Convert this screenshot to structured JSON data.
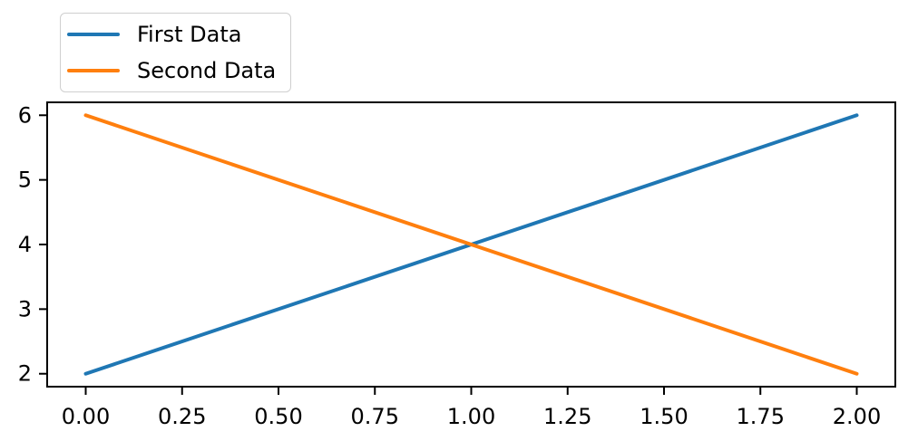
{
  "chart_data": {
    "type": "line",
    "title": "",
    "xlabel": "",
    "ylabel": "",
    "x": [
      0,
      1,
      2
    ],
    "series": [
      {
        "name": "First Data",
        "color": "#1f77b4",
        "values": [
          2,
          4,
          6
        ]
      },
      {
        "name": "Second Data",
        "color": "#ff7f0e",
        "values": [
          6,
          4,
          2
        ]
      }
    ],
    "xlim": [
      -0.1,
      2.1
    ],
    "ylim": [
      1.8,
      6.2
    ],
    "xticks": [
      {
        "value": 0.0,
        "label": "0.00"
      },
      {
        "value": 0.25,
        "label": "0.25"
      },
      {
        "value": 0.5,
        "label": "0.50"
      },
      {
        "value": 0.75,
        "label": "0.75"
      },
      {
        "value": 1.0,
        "label": "1.00"
      },
      {
        "value": 1.25,
        "label": "1.25"
      },
      {
        "value": 1.5,
        "label": "1.50"
      },
      {
        "value": 1.75,
        "label": "1.75"
      },
      {
        "value": 2.0,
        "label": "2.00"
      }
    ],
    "yticks": [
      {
        "value": 2,
        "label": "2"
      },
      {
        "value": 3,
        "label": "3"
      },
      {
        "value": 4,
        "label": "4"
      },
      {
        "value": 5,
        "label": "5"
      },
      {
        "value": 6,
        "label": "6"
      }
    ],
    "grid": false,
    "axis_color": "#000000",
    "tick_label_color": "#000000",
    "background_color": "#ffffff",
    "legend": {
      "position": "upper left",
      "border_color": "#cfcfcf",
      "entries": [
        {
          "label": "First Data",
          "color": "#1f77b4"
        },
        {
          "label": "Second Data",
          "color": "#ff7f0e"
        }
      ]
    }
  }
}
